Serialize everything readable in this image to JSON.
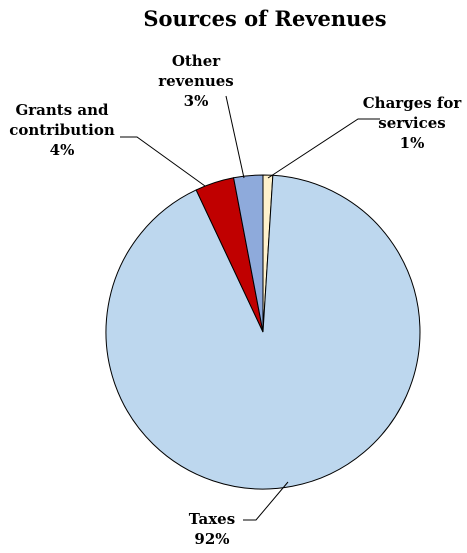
{
  "chart_data": {
    "type": "pie",
    "title": "Sources of Revenues",
    "start_angle_deg": 0,
    "direction": "clockwise",
    "slices": [
      {
        "label_lines": [
          "Charges for",
          "services"
        ],
        "percent_label": "1%",
        "value": 1,
        "color": "#fff2cc"
      },
      {
        "label_lines": [
          "Taxes"
        ],
        "percent_label": "92%",
        "value": 92,
        "color": "#bdd7ee"
      },
      {
        "label_lines": [
          "Grants and",
          "contribution"
        ],
        "percent_label": "4%",
        "value": 4,
        "color": "#c00000"
      },
      {
        "label_lines": [
          "Other",
          "revenues"
        ],
        "percent_label": "3%",
        "value": 3,
        "color": "#8eaadb"
      }
    ]
  }
}
